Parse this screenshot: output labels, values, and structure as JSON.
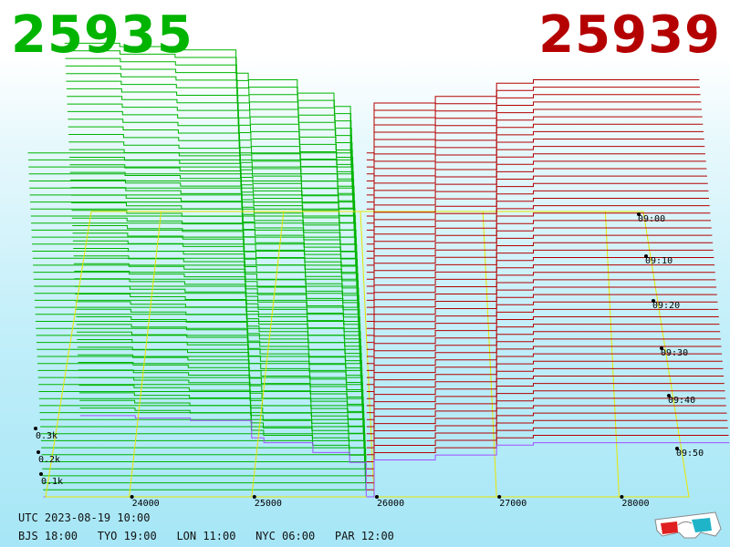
{
  "header": {
    "bid_price": "25935",
    "ask_price": "25939"
  },
  "footer": {
    "utc": "UTC 2023-08-19 10:00",
    "zones": [
      {
        "label": "BJS 18:00"
      },
      {
        "label": "TYO 19:00"
      },
      {
        "label": "LON 11:00"
      },
      {
        "label": "NYC 06:00"
      },
      {
        "label": "PAR 12:00"
      }
    ]
  },
  "colors": {
    "bid": "#00b400",
    "ask": "#b40000",
    "grid": "#e6e600",
    "latest": "#a050ff"
  },
  "icons": {
    "glasses": "3d-glasses-icon"
  },
  "chart_data": {
    "type": "area",
    "subtype": "3d-depth-chart-history",
    "price_ticks": [
      24000,
      25000,
      26000,
      27000,
      28000
    ],
    "price_tick_labels": [
      "24000",
      "25000",
      "26000",
      "27000",
      "28000"
    ],
    "volume_ticks": [
      0.1,
      0.2,
      0.3
    ],
    "volume_tick_labels": [
      "0.1k",
      "0.2k",
      "0.3k"
    ],
    "time_ticks": [
      "09:00",
      "09:10",
      "09:20",
      "09:30",
      "09:40",
      "09:50"
    ],
    "bid_price": 25935,
    "ask_price": 25939,
    "bid_depth": [
      {
        "price": 23600,
        "volume": 0.33
      },
      {
        "price": 24050,
        "volume": 0.32
      },
      {
        "price": 24500,
        "volume": 0.31
      },
      {
        "price": 25000,
        "volume": 0.24
      },
      {
        "price": 25100,
        "volume": 0.22
      },
      {
        "price": 25500,
        "volume": 0.18
      },
      {
        "price": 25800,
        "volume": 0.14
      },
      {
        "price": 25935,
        "volume": 0.0
      }
    ],
    "ask_depth": [
      {
        "price": 25939,
        "volume": 0.0
      },
      {
        "price": 26000,
        "volume": 0.15
      },
      {
        "price": 26500,
        "volume": 0.17
      },
      {
        "price": 27000,
        "volume": 0.21
      },
      {
        "price": 27300,
        "volume": 0.22
      },
      {
        "price": 28200,
        "volume": 0.22
      }
    ],
    "grid": true
  }
}
